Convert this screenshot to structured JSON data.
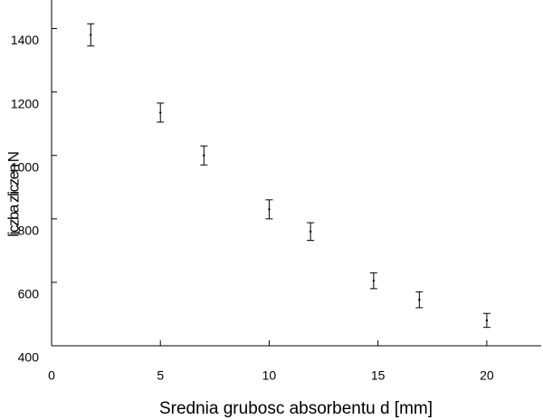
{
  "chart_data": {
    "type": "errorbar",
    "xlabel": "Srednia grubosc absorbentu d [mm]",
    "ylabel": "liczba zliczen N",
    "series": [
      {
        "color": "#000000",
        "x": [
          1.8,
          5,
          7,
          10,
          11.9,
          14.8,
          16.9,
          20
        ],
        "values": [
          1380,
          1135,
          1000,
          830,
          760,
          605,
          545,
          480
        ],
        "errors": [
          35,
          30,
          30,
          30,
          28,
          25,
          25,
          22
        ]
      }
    ],
    "xlim": [
      0,
      22.5
    ],
    "xticks": [
      0,
      5,
      10,
      15,
      20
    ],
    "ylim": [
      400,
      1490
    ],
    "yticks": [
      400,
      600,
      800,
      1000,
      1200,
      1400
    ],
    "grid": false
  }
}
